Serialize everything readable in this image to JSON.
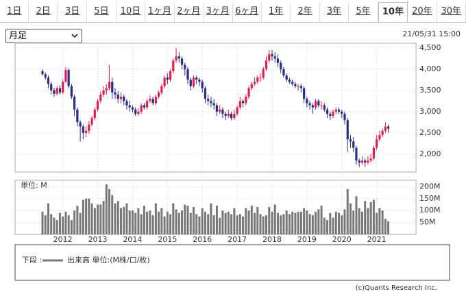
{
  "tabs": [
    "1日",
    "2日",
    "3日",
    "5日",
    "10日",
    "1ヶ月",
    "2ヶ月",
    "3ヶ月",
    "6ヶ月",
    "1年",
    "2年",
    "3年",
    "5年",
    "10年",
    "20年",
    "30年"
  ],
  "dropdown": "月足",
  "timestamp": "21/05/31 15:00",
  "footer": "(c)Quants Research Inc.",
  "chart_data": [
    {
      "type": "candlestick",
      "up_color": "#e01e4f",
      "down_color": "#2b2b88",
      "grid": true,
      "ylim": [
        1580,
        4610
      ],
      "yticks": [
        {
          "value": 2000,
          "label": "2,000"
        },
        {
          "value": 2500,
          "label": "2,500"
        },
        {
          "value": 3000,
          "label": "3,000"
        },
        {
          "value": 3500,
          "label": "3,500"
        },
        {
          "value": 4000,
          "label": "4,000"
        },
        {
          "value": 4500,
          "label": "4,500"
        }
      ],
      "open": [
        3950,
        3880,
        3800,
        3650,
        3500,
        3420,
        3550,
        3450,
        3700,
        3980,
        3600,
        3350,
        3050,
        2750,
        2650,
        2500,
        2550,
        2700,
        2850,
        3050,
        3250,
        3400,
        3500,
        3550,
        3700,
        3450,
        3400,
        3300,
        3350,
        3250,
        3150,
        3100,
        3050,
        2950,
        3000,
        3150,
        3100,
        3250,
        3300,
        3200,
        3350,
        3450,
        3600,
        3800,
        3750,
        3950,
        4200,
        4300,
        4250,
        4100,
        4000,
        3750,
        3600,
        3800,
        3750,
        3700,
        3550,
        3300,
        3250,
        3200,
        3150,
        3000,
        3050,
        2950,
        2900,
        2950,
        2850,
        2950,
        3100,
        3250,
        3200,
        3350,
        3550,
        3650,
        3700,
        3800,
        3800,
        4000,
        4200,
        4350,
        4300,
        4250,
        4150,
        4000,
        3850,
        3750,
        3700,
        3650,
        3600,
        3600,
        3550,
        3300,
        3200,
        3150,
        3100,
        3250,
        3150,
        3150,
        3050,
        2950,
        2900,
        3000,
        3050,
        3000,
        2950,
        2800,
        2350,
        2300,
        2150,
        1850,
        1800,
        1850,
        1800,
        1850,
        1900,
        2150,
        2350,
        2450,
        2550,
        2650
      ],
      "high": [
        4000,
        3920,
        3850,
        3700,
        3560,
        3600,
        3620,
        3760,
        4050,
        4020,
        3650,
        3400,
        3100,
        2800,
        2700,
        2650,
        2780,
        2900,
        3100,
        3300,
        3480,
        3600,
        3650,
        4100,
        3800,
        3550,
        3480,
        3450,
        3400,
        3300,
        3250,
        3150,
        3100,
        3080,
        3200,
        3200,
        3300,
        3380,
        3350,
        3400,
        3500,
        3650,
        3850,
        3900,
        4000,
        4250,
        4500,
        4400,
        4300,
        4150,
        4050,
        3800,
        3850,
        3850,
        3800,
        3750,
        3600,
        3400,
        3350,
        3300,
        3200,
        3150,
        3100,
        3000,
        3050,
        3000,
        3050,
        3150,
        3350,
        3300,
        3400,
        3600,
        3700,
        3800,
        3850,
        3900,
        4050,
        4300,
        4450,
        4450,
        4400,
        4350,
        4200,
        4050,
        3900,
        3800,
        3750,
        3700,
        3650,
        3650,
        3600,
        3350,
        3250,
        3200,
        3300,
        3300,
        3250,
        3200,
        3100,
        3000,
        3050,
        3100,
        3100,
        3050,
        3000,
        2850,
        2450,
        2400,
        2200,
        1900,
        1950,
        1900,
        1950,
        2000,
        2200,
        2450,
        2550,
        2600,
        2750,
        2700
      ],
      "low": [
        3850,
        3750,
        3550,
        3400,
        3350,
        3380,
        3400,
        3420,
        3680,
        3550,
        3300,
        2900,
        2650,
        2300,
        2350,
        2400,
        2480,
        2650,
        2800,
        3000,
        3200,
        3350,
        3400,
        3500,
        3300,
        3300,
        3200,
        3200,
        3150,
        3050,
        3000,
        2980,
        2900,
        2900,
        2950,
        3050,
        3050,
        3200,
        3150,
        3150,
        3300,
        3400,
        3550,
        3650,
        3700,
        3900,
        4150,
        4150,
        4000,
        3850,
        3650,
        3500,
        3550,
        3650,
        3600,
        3450,
        3200,
        3150,
        3100,
        3050,
        2900,
        2950,
        2850,
        2800,
        2850,
        2800,
        2800,
        2900,
        3050,
        3100,
        3150,
        3300,
        3500,
        3600,
        3650,
        3700,
        3750,
        3950,
        4150,
        4200,
        4150,
        4050,
        3900,
        3800,
        3700,
        3650,
        3600,
        3550,
        3500,
        3450,
        3200,
        3100,
        3050,
        2950,
        3050,
        3100,
        3050,
        3000,
        2850,
        2800,
        2850,
        2950,
        2950,
        2850,
        2700,
        2050,
        2150,
        2050,
        1750,
        1700,
        1750,
        1700,
        1750,
        1800,
        1850,
        2100,
        2300,
        2400,
        2500,
        2500
      ],
      "close": [
        3880,
        3800,
        3650,
        3500,
        3420,
        3550,
        3450,
        3700,
        3980,
        3600,
        3350,
        3050,
        2750,
        2650,
        2500,
        2550,
        2700,
        2850,
        3050,
        3250,
        3400,
        3500,
        3550,
        3700,
        3450,
        3400,
        3300,
        3350,
        3250,
        3150,
        3100,
        3050,
        2950,
        3000,
        3150,
        3100,
        3250,
        3300,
        3200,
        3350,
        3450,
        3600,
        3800,
        3750,
        3950,
        4200,
        4300,
        4250,
        4100,
        4000,
        3750,
        3600,
        3800,
        3750,
        3700,
        3550,
        3300,
        3250,
        3200,
        3150,
        3000,
        3050,
        2950,
        2900,
        2950,
        2850,
        2950,
        3100,
        3250,
        3200,
        3350,
        3550,
        3650,
        3700,
        3800,
        3800,
        4000,
        4200,
        4350,
        4300,
        4250,
        4150,
        4000,
        3850,
        3750,
        3700,
        3650,
        3600,
        3600,
        3550,
        3300,
        3200,
        3150,
        3100,
        3250,
        3150,
        3150,
        3050,
        2950,
        2900,
        3000,
        3050,
        3000,
        2950,
        2800,
        2350,
        2300,
        2150,
        1850,
        1800,
        1850,
        1800,
        1850,
        1900,
        2150,
        2350,
        2450,
        2550,
        2650,
        2600
      ]
    },
    {
      "type": "bar",
      "unit_label": "単位: M",
      "legend_title": "下段 :",
      "grid": true,
      "ylim": [
        0,
        227
      ],
      "yticks": [
        {
          "value": 50,
          "label": "50M"
        },
        {
          "value": 100,
          "label": "100M"
        },
        {
          "value": 150,
          "label": "150M"
        },
        {
          "value": 200,
          "label": "200M"
        }
      ],
      "categories": [
        null,
        null,
        null,
        null,
        null,
        null,
        null,
        "2012",
        null,
        null,
        null,
        null,
        null,
        null,
        null,
        null,
        null,
        null,
        null,
        "2013",
        null,
        null,
        null,
        null,
        null,
        null,
        null,
        null,
        null,
        null,
        null,
        "2014",
        null,
        null,
        null,
        null,
        null,
        null,
        null,
        null,
        null,
        null,
        null,
        "2015",
        null,
        null,
        null,
        null,
        null,
        null,
        null,
        null,
        null,
        null,
        null,
        "2016",
        null,
        null,
        null,
        null,
        null,
        null,
        null,
        null,
        null,
        null,
        null,
        "2017",
        null,
        null,
        null,
        null,
        null,
        null,
        null,
        null,
        null,
        null,
        null,
        "2018",
        null,
        null,
        null,
        null,
        null,
        null,
        null,
        null,
        null,
        null,
        null,
        "2019",
        null,
        null,
        null,
        null,
        null,
        null,
        null,
        null,
        null,
        null,
        null,
        "2020",
        null,
        null,
        null,
        null,
        null,
        null,
        null,
        null,
        null,
        null,
        null,
        "2021",
        null,
        null,
        null,
        null
      ],
      "series": [
        {
          "name": "出来高 単位:(M株/口/枚)",
          "color": "#777777",
          "values": [
            95,
            80,
            130,
            85,
            70,
            60,
            90,
            75,
            95,
            80,
            60,
            100,
            120,
            90,
            145,
            150,
            150,
            130,
            110,
            125,
            125,
            140,
            210,
            190,
            165,
            130,
            140,
            110,
            115,
            130,
            100,
            100,
            90,
            110,
            85,
            120,
            95,
            100,
            80,
            130,
            95,
            110,
            75,
            95,
            85,
            130,
            105,
            90,
            100,
            125,
            120,
            90,
            115,
            85,
            75,
            110,
            95,
            85,
            130,
            80,
            120,
            70,
            100,
            90,
            95,
            85,
            110,
            80,
            85,
            75,
            110,
            100,
            120,
            90,
            115,
            85,
            75,
            80,
            115,
            95,
            125,
            90,
            80,
            85,
            100,
            85,
            95,
            90,
            95,
            95,
            110,
            100,
            85,
            80,
            95,
            105,
            120,
            70,
            60,
            90,
            70,
            95,
            90,
            80,
            105,
            190,
            130,
            100,
            160,
            110,
            95,
            140,
            110,
            135,
            145,
            90,
            110,
            100,
            65,
            55
          ]
        }
      ]
    }
  ]
}
